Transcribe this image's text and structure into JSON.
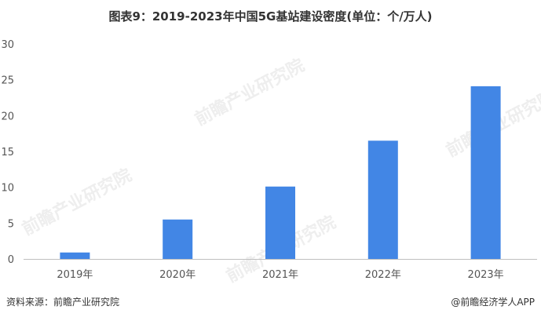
{
  "chart_data": {
    "type": "bar",
    "title": "图表9：2019-2023年中国5G基站建设密度(单位：个/万人)",
    "categories": [
      "2019年",
      "2020年",
      "2021年",
      "2022年",
      "2023年"
    ],
    "values": [
      0.9,
      5.5,
      10.1,
      16.5,
      24.1
    ],
    "ylim": [
      0,
      30
    ],
    "yticks": [
      0,
      5,
      10,
      15,
      20,
      25,
      30
    ],
    "grid": false,
    "bar_color": "#4286e5",
    "xlabel": "",
    "ylabel": ""
  },
  "footer": {
    "source": "资料来源：前瞻产业研究院",
    "credit": "@前瞻经济学人APP"
  },
  "watermark": {
    "text": "前瞻产业研究院"
  }
}
